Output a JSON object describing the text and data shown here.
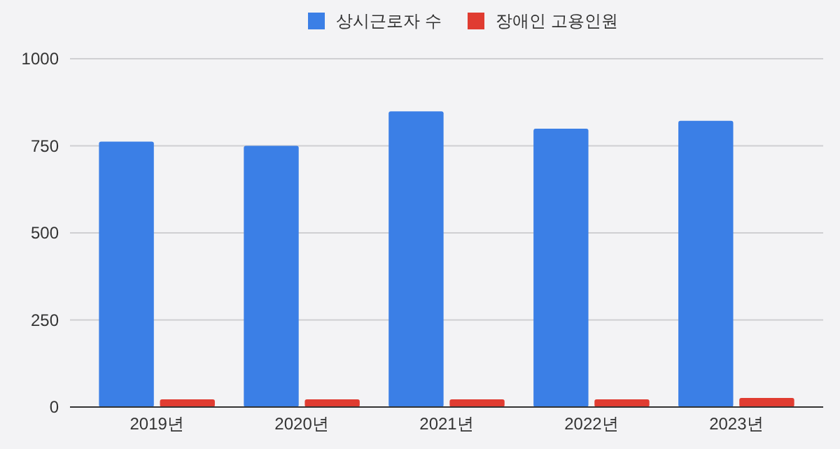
{
  "chart_data": {
    "type": "bar",
    "categories": [
      "2019년",
      "2020년",
      "2021년",
      "2022년",
      "2023년"
    ],
    "series": [
      {
        "name": "상시근로자 수",
        "color": "#3b7fe6",
        "values": [
          762,
          750,
          849,
          799,
          822
        ]
      },
      {
        "name": "장애인 고용인원",
        "color": "#e03c31",
        "values": [
          22,
          22,
          22,
          22,
          26
        ]
      }
    ],
    "ylim": [
      0,
      1000
    ],
    "yticks": [
      0,
      250,
      500,
      750,
      1000
    ],
    "grid": "y",
    "legend": "top"
  }
}
